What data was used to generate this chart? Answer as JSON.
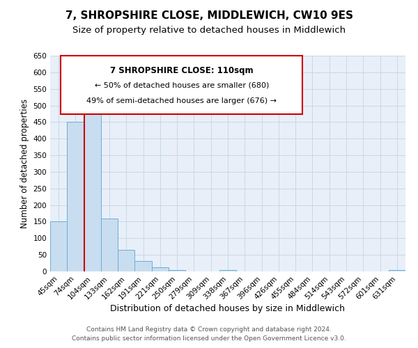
{
  "title": "7, SHROPSHIRE CLOSE, MIDDLEWICH, CW10 9ES",
  "subtitle": "Size of property relative to detached houses in Middlewich",
  "xlabel": "Distribution of detached houses by size in Middlewich",
  "ylabel": "Number of detached properties",
  "bar_labels": [
    "45sqm",
    "74sqm",
    "104sqm",
    "133sqm",
    "162sqm",
    "191sqm",
    "221sqm",
    "250sqm",
    "279sqm",
    "309sqm",
    "338sqm",
    "367sqm",
    "396sqm",
    "426sqm",
    "455sqm",
    "484sqm",
    "514sqm",
    "543sqm",
    "572sqm",
    "601sqm",
    "631sqm"
  ],
  "bar_values": [
    150,
    450,
    510,
    160,
    65,
    32,
    12,
    5,
    0,
    0,
    5,
    0,
    0,
    0,
    0,
    0,
    0,
    0,
    0,
    0,
    5
  ],
  "bar_color": "#c9ddf0",
  "bar_edge_color": "#6aaed6",
  "vline_color": "#cc0000",
  "vline_x_idx": 2,
  "ylim": [
    0,
    650
  ],
  "yticks": [
    0,
    50,
    100,
    150,
    200,
    250,
    300,
    350,
    400,
    450,
    500,
    550,
    600,
    650
  ],
  "annotation_title": "7 SHROPSHIRE CLOSE: 110sqm",
  "annotation_line1": "← 50% of detached houses are smaller (680)",
  "annotation_line2": "49% of semi-detached houses are larger (676) →",
  "annotation_box_color": "#ffffff",
  "annotation_border_color": "#cc0000",
  "footer1": "Contains HM Land Registry data © Crown copyright and database right 2024.",
  "footer2": "Contains public sector information licensed under the Open Government Licence v3.0.",
  "background_color": "#ffffff",
  "axes_facecolor": "#e8eff8",
  "grid_color": "#c8d8e8",
  "title_fontsize": 11,
  "subtitle_fontsize": 9.5,
  "xlabel_fontsize": 9,
  "ylabel_fontsize": 8.5,
  "tick_fontsize": 7.5,
  "footer_fontsize": 6.5,
  "annotation_title_fontsize": 8.5,
  "annotation_body_fontsize": 8
}
